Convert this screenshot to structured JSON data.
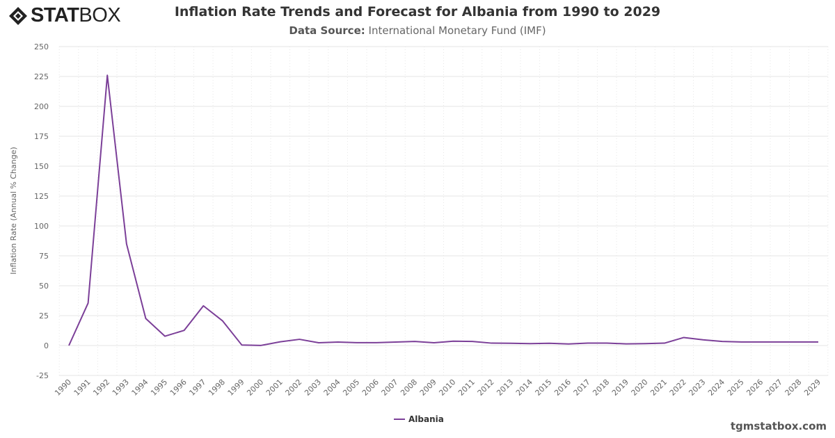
{
  "brand": {
    "logo_bold": "STAT",
    "logo_light": "BOX",
    "watermark": "tgmstatbox.com"
  },
  "header": {
    "title": "Inflation Rate Trends and Forecast for Albania from 1990 to 2029",
    "subtitle_label": "Data Source:",
    "subtitle_value": "International Monetary Fund (IMF)"
  },
  "colors": {
    "series": "#7b3f98",
    "grid": "#e6e6e6"
  },
  "chart_data": {
    "type": "line",
    "title": "Inflation Rate Trends and Forecast for Albania from 1990 to 2029",
    "xlabel": "",
    "ylabel": "Inflation Rate (Annual % Change)",
    "ylim": [
      -25,
      250
    ],
    "yticks": [
      -25,
      0,
      25,
      50,
      75,
      100,
      125,
      150,
      175,
      200,
      225,
      250
    ],
    "grid": true,
    "legend_placement": "bottom",
    "categories": [
      "1990",
      "1991",
      "1992",
      "1993",
      "1994",
      "1995",
      "1996",
      "1997",
      "1998",
      "1999",
      "2000",
      "2001",
      "2002",
      "2003",
      "2004",
      "2005",
      "2006",
      "2007",
      "2008",
      "2009",
      "2010",
      "2011",
      "2012",
      "2013",
      "2014",
      "2015",
      "2016",
      "2017",
      "2018",
      "2019",
      "2020",
      "2021",
      "2022",
      "2023",
      "2024",
      "2025",
      "2026",
      "2027",
      "2028",
      "2029"
    ],
    "series": [
      {
        "name": "Albania",
        "values": [
          0,
          35.5,
          226,
          85,
          22.6,
          7.8,
          12.7,
          33.2,
          20.6,
          0.4,
          0.1,
          3.1,
          5.2,
          2.3,
          2.9,
          2.4,
          2.4,
          2.9,
          3.4,
          2.3,
          3.6,
          3.4,
          2.0,
          1.9,
          1.6,
          1.9,
          1.3,
          2.0,
          2.0,
          1.4,
          1.6,
          2.0,
          6.7,
          4.8,
          3.4,
          3.0,
          3.0,
          3.0,
          3.0,
          3.0
        ]
      }
    ]
  }
}
